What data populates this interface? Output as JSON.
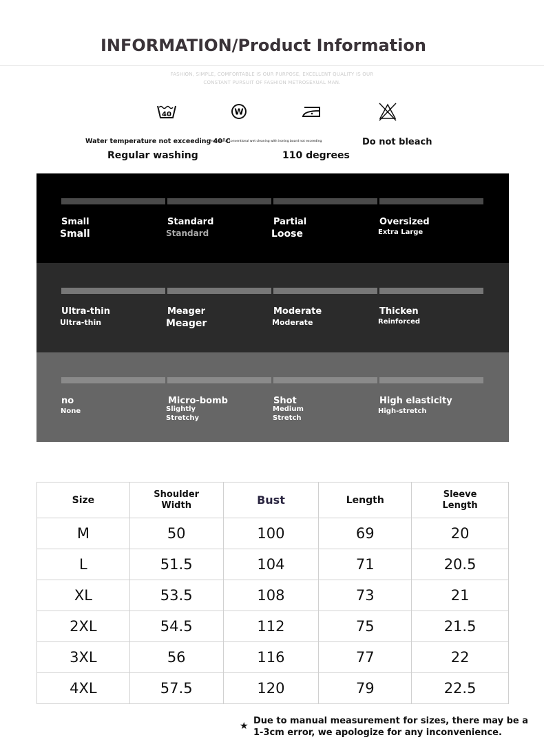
{
  "title": "INFORMATION/Product Information",
  "slogan": [
    "FASHION, SIMPLE, COMFORTABLE IS OUR PURPOSE, EXCELLENT QUALITY IS OUR",
    "CONSTANT PURSUIT OF FASHION METROSEXUAL MAN."
  ],
  "care": {
    "icons": [
      "wash-40-icon",
      "wet-clean-icon",
      "iron-icon",
      "no-bleach-icon"
    ],
    "wash_small": "Water temperature not exceeding 40°C",
    "wash_big": "Regular washing",
    "iron_small": "Professional conventional wet cleaning with ironing board not exceeding",
    "iron_big": "110 degrees",
    "bleach": "Do not bleach"
  },
  "panels": [
    {
      "name": "fit",
      "items": [
        {
          "l1": "Small",
          "l2": "Small"
        },
        {
          "l1": "Standard",
          "l2": "Standard"
        },
        {
          "l1": "Partial",
          "l2": "Loose"
        },
        {
          "l1": "Oversized",
          "l2": "Extra Large"
        }
      ]
    },
    {
      "name": "thickness",
      "items": [
        {
          "l1": "Ultra-thin",
          "l2": "Ultra-thin"
        },
        {
          "l1": "Meager",
          "l2": "Meager"
        },
        {
          "l1": "Moderate",
          "l2": "Moderate"
        },
        {
          "l1": "Thicken",
          "l2": "Reinforced"
        }
      ]
    },
    {
      "name": "elasticity",
      "items": [
        {
          "l1": "no",
          "l2": "None"
        },
        {
          "l1": "Micro-bomb",
          "l2": "Slightly Stretchy"
        },
        {
          "l1": "Shot",
          "l2": "Medium Stretch"
        },
        {
          "l1": "High elasticity",
          "l2": "High-stretch"
        }
      ]
    }
  ],
  "size_table": {
    "headers": [
      "Size",
      "Shoulder Width",
      "Bust",
      "Length",
      "Sleeve Length"
    ],
    "rows": [
      [
        "M",
        "50",
        "100",
        "69",
        "20"
      ],
      [
        "L",
        "51.5",
        "104",
        "71",
        "20.5"
      ],
      [
        "XL",
        "53.5",
        "108",
        "73",
        "21"
      ],
      [
        "2XL",
        "54.5",
        "112",
        "75",
        "21.5"
      ],
      [
        "3XL",
        "56",
        "116",
        "77",
        "22"
      ],
      [
        "4XL",
        "57.5",
        "120",
        "79",
        "22.5"
      ]
    ]
  },
  "footnote": "Due to manual measurement for sizes, there may be a 1-3cm error, we apologize for any inconvenience.",
  "colors": {
    "panel1": "#000000",
    "panel2": "#2b2b2b",
    "panel3": "#666666"
  }
}
